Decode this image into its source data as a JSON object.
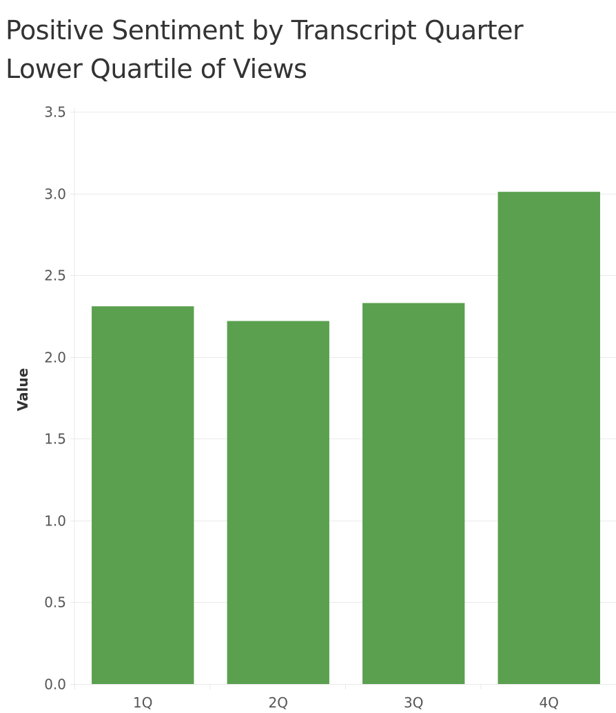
{
  "chart_data": {
    "type": "bar",
    "title": "Positive Sentiment by Transcript Quarter",
    "subtitle": "Lower Quartile of Views",
    "xlabel": "",
    "ylabel": "Value",
    "categories": [
      "1Q",
      "2Q",
      "3Q",
      "4Q"
    ],
    "values": [
      2.31,
      2.22,
      2.33,
      3.01
    ],
    "ylim": [
      0,
      3.5
    ],
    "yticks": [
      0.0,
      0.5,
      1.0,
      1.5,
      2.0,
      2.5,
      3.0,
      3.5
    ],
    "ytick_labels": [
      "0.0",
      "0.5",
      "1.0",
      "1.5",
      "2.0",
      "2.5",
      "3.0",
      "3.5"
    ],
    "grid": true,
    "bar_color": "#5aa04f",
    "grid_color": "#e9e9e9"
  }
}
